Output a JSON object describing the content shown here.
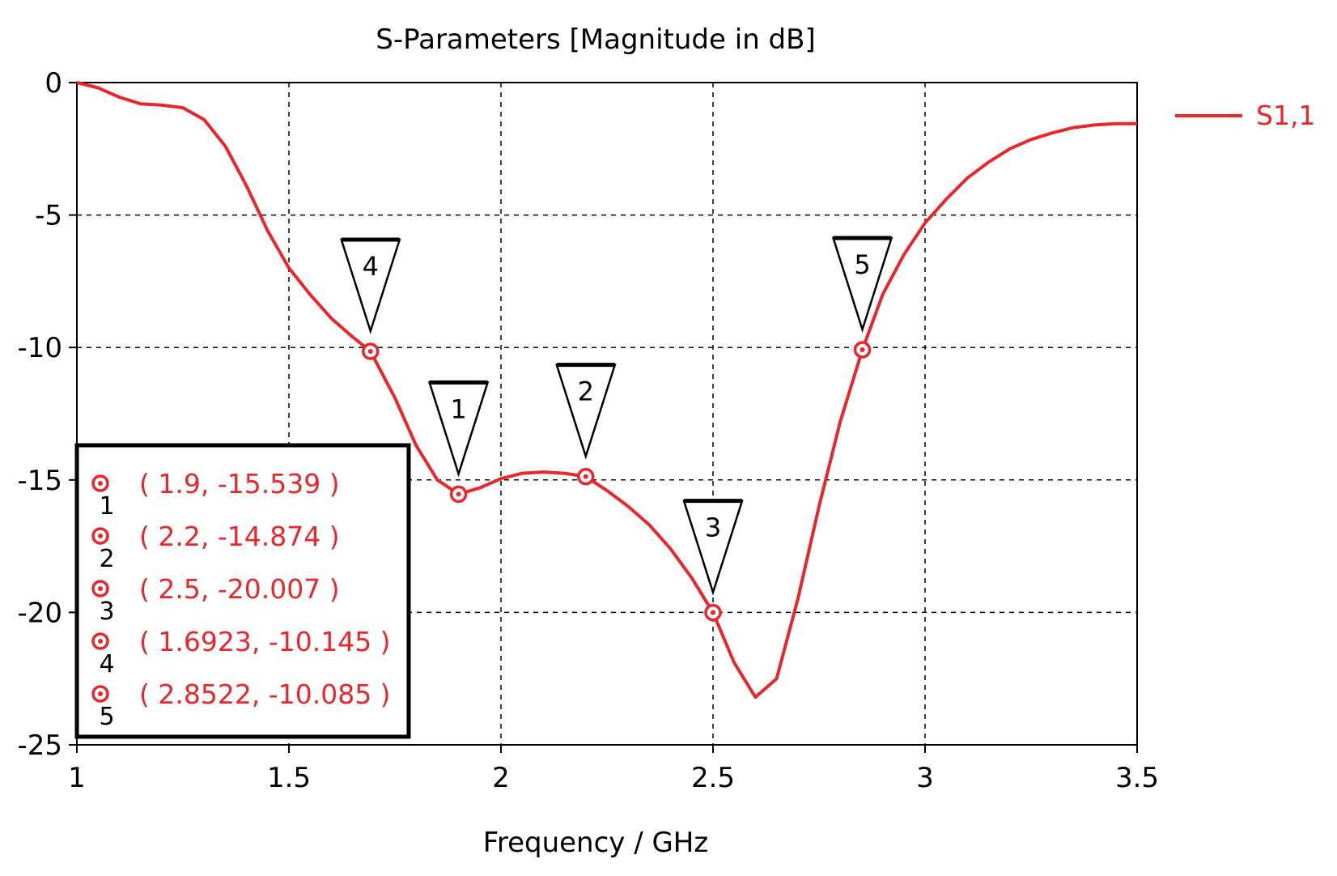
{
  "chart_data": {
    "type": "line",
    "title": "S-Parameters [Magnitude in dB]",
    "xlabel": "Frequency / GHz",
    "ylabel": "",
    "xlim": [
      1,
      3.5
    ],
    "ylim": [
      -25,
      0
    ],
    "xticks": [
      1,
      1.5,
      2,
      2.5,
      3,
      3.5
    ],
    "xtick_labels": [
      "1",
      "1.5",
      "2",
      "2.5",
      "3",
      "3.5"
    ],
    "yticks": [
      0,
      -5,
      -10,
      -15,
      -20,
      -25
    ],
    "ytick_labels": [
      "0",
      "-5",
      "-10",
      "-15",
      "-20",
      "-25"
    ],
    "grid": true,
    "legend_position": "right",
    "series": [
      {
        "name": "S1,1",
        "color": "#e8262b",
        "x": [
          1.0,
          1.05,
          1.1,
          1.15,
          1.2,
          1.25,
          1.3,
          1.35,
          1.4,
          1.45,
          1.5,
          1.55,
          1.6,
          1.65,
          1.6923,
          1.75,
          1.8,
          1.85,
          1.9,
          1.95,
          2.0,
          2.05,
          2.1,
          2.15,
          2.2,
          2.25,
          2.3,
          2.35,
          2.4,
          2.45,
          2.5,
          2.55,
          2.6,
          2.65,
          2.7,
          2.75,
          2.8,
          2.8522,
          2.9,
          2.95,
          3.0,
          3.05,
          3.1,
          3.15,
          3.2,
          3.25,
          3.3,
          3.35,
          3.4,
          3.45,
          3.5
        ],
        "y": [
          0.0,
          -0.2,
          -0.55,
          -0.8,
          -0.85,
          -0.95,
          -1.4,
          -2.4,
          -3.9,
          -5.6,
          -7.0,
          -8.0,
          -8.9,
          -9.6,
          -10.145,
          -11.9,
          -13.7,
          -15.0,
          -15.539,
          -15.3,
          -14.95,
          -14.75,
          -14.7,
          -14.75,
          -14.874,
          -15.4,
          -16.0,
          -16.7,
          -17.6,
          -18.7,
          -20.007,
          -21.9,
          -23.2,
          -22.5,
          -19.5,
          -16.0,
          -12.8,
          -10.085,
          -8.0,
          -6.5,
          -5.3,
          -4.4,
          -3.6,
          -3.0,
          -2.5,
          -2.15,
          -1.9,
          -1.7,
          -1.6,
          -1.55,
          -1.55
        ]
      }
    ],
    "markers": [
      {
        "id": "1",
        "x": 1.9,
        "y": -15.539,
        "readout": "( 1.9, -15.539 )"
      },
      {
        "id": "2",
        "x": 2.2,
        "y": -14.874,
        "readout": "( 2.2, -14.874 )"
      },
      {
        "id": "3",
        "x": 2.5,
        "y": -20.007,
        "readout": "( 2.5, -20.007 )"
      },
      {
        "id": "4",
        "x": 1.6923,
        "y": -10.145,
        "readout": "( 1.6923, -10.145 )"
      },
      {
        "id": "5",
        "x": 2.8522,
        "y": -10.085,
        "readout": "( 2.8522, -10.085 )"
      }
    ]
  }
}
